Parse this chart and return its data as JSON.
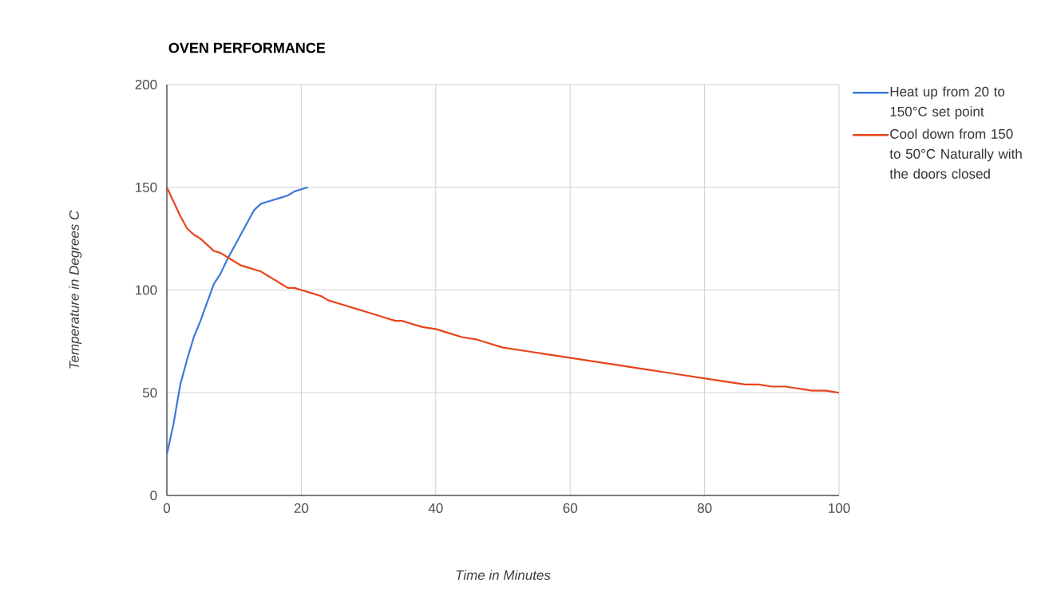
{
  "chart_data": {
    "type": "line",
    "title": "OVEN PERFORMANCE",
    "xlabel": "Time in Minutes",
    "ylabel": "Temperature in Degrees C",
    "xlim": [
      0,
      100
    ],
    "ylim": [
      0,
      200
    ],
    "xticks": [
      0,
      20,
      40,
      60,
      80,
      100
    ],
    "yticks": [
      0,
      50,
      100,
      150,
      200
    ],
    "grid": true,
    "legend": "right",
    "series": [
      {
        "name": "Heat up from 20 to 150°C set point",
        "color": "#3c78d8",
        "x": [
          0,
          1,
          2,
          3,
          4,
          5,
          6,
          7,
          8,
          9,
          10,
          11,
          12,
          13,
          14,
          15,
          16,
          17,
          18,
          19,
          20,
          21
        ],
        "values": [
          20,
          35,
          54,
          66,
          77,
          85,
          94,
          103,
          108,
          115,
          121,
          127,
          133,
          139,
          142,
          143,
          144,
          145,
          146,
          148,
          149,
          150
        ]
      },
      {
        "name": "Cool down from 150 to 50°C Naturally with the doors closed",
        "color": "#e8441b",
        "x": [
          0,
          1,
          2,
          3,
          4,
          5,
          6,
          7,
          8,
          9,
          10,
          11,
          12,
          13,
          14,
          15,
          16,
          17,
          18,
          19,
          20,
          22,
          23,
          24,
          26,
          28,
          30,
          32,
          34,
          35,
          36,
          38,
          40,
          42,
          44,
          46,
          48,
          50,
          52,
          54,
          56,
          58,
          60,
          62,
          64,
          66,
          68,
          70,
          72,
          74,
          76,
          78,
          80,
          82,
          84,
          86,
          88,
          90,
          92,
          94,
          96,
          98,
          100
        ],
        "values": [
          150,
          143,
          136,
          130,
          127,
          125,
          122,
          119,
          118,
          116,
          114,
          112,
          111,
          110,
          109,
          107,
          105,
          103,
          101,
          101,
          100,
          98,
          97,
          95,
          93,
          91,
          89,
          87,
          85,
          85,
          84,
          82,
          81,
          79,
          77,
          76,
          74,
          72,
          71,
          70,
          69,
          68,
          67,
          66,
          65,
          64,
          63,
          62,
          61,
          60,
          59,
          58,
          57,
          56,
          55,
          54,
          54,
          53,
          53,
          52,
          51,
          51,
          50
        ]
      }
    ]
  }
}
